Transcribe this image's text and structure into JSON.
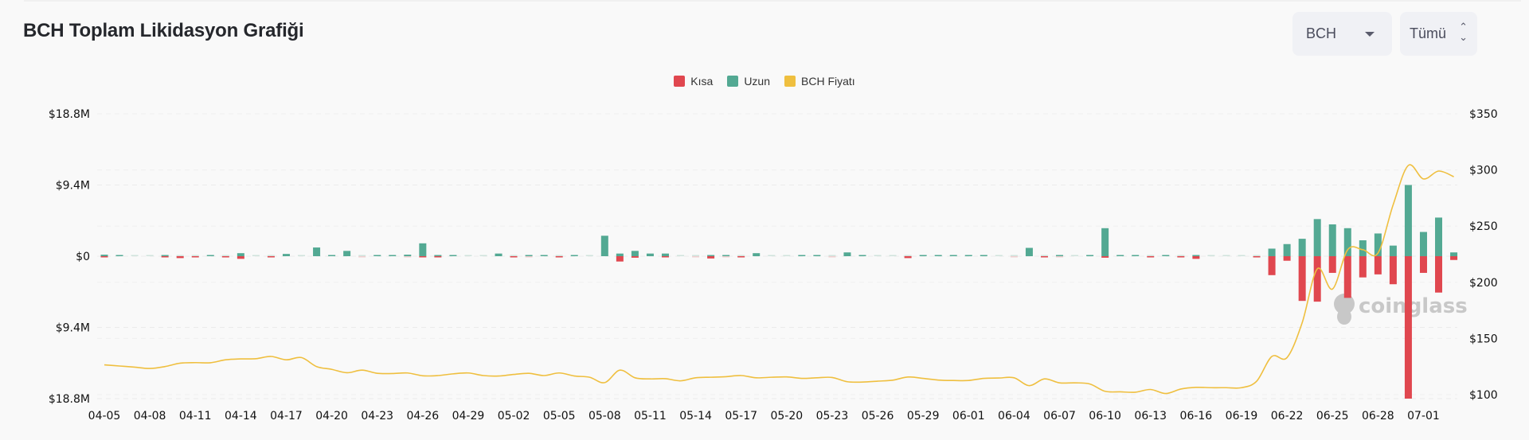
{
  "header": {
    "title": "BCH Toplam Likidasyon Grafiği",
    "coin_select": {
      "value": "BCH",
      "icon": "caret-down-icon"
    },
    "range_select": {
      "value": "Tümü",
      "icon": "up-down-chevron-icon"
    }
  },
  "watermark": "coinglass",
  "chart_data": {
    "type": "bar",
    "title": "",
    "legend_position": "top-center",
    "grid": true,
    "legend": [
      {
        "name": "Kısa",
        "color": "#e0474f"
      },
      {
        "name": "Uzun",
        "color": "#53a993"
      },
      {
        "name": "BCH Fiyatı",
        "color": "#efbf3f"
      }
    ],
    "left_axis": {
      "ticks": [
        "$18.8M",
        "$9.4M",
        "$0",
        "$9.4M",
        "$18.8M"
      ],
      "tick_values": [
        18.8,
        9.4,
        0,
        -9.4,
        -18.8
      ],
      "range": [
        -18.8,
        18.8
      ],
      "unit": "M USD"
    },
    "right_axis": {
      "ticks": [
        "$350",
        "$300",
        "$250",
        "$200",
        "$150",
        "$100"
      ],
      "tick_values": [
        350,
        300,
        250,
        200,
        150,
        100
      ],
      "range": [
        100,
        350
      ]
    },
    "x_tick_labels": [
      "04-05",
      "04-08",
      "04-11",
      "04-14",
      "04-17",
      "04-20",
      "04-23",
      "04-26",
      "04-29",
      "05-02",
      "05-05",
      "05-08",
      "05-11",
      "05-14",
      "05-17",
      "05-20",
      "05-23",
      "05-26",
      "05-29",
      "06-01",
      "06-04",
      "06-07",
      "06-10",
      "06-13",
      "06-16",
      "06-19",
      "06-22",
      "06-25",
      "06-28",
      "07-01"
    ],
    "x_start": "04-05",
    "x_end": "07-03",
    "series": [
      {
        "name": "Uzun",
        "color": "#53a993",
        "axis": "left",
        "kind": "bar-up",
        "values": [
          0.2,
          0.1,
          0.05,
          0.05,
          0.1,
          0,
          0.05,
          0.15,
          0,
          0.4,
          0.05,
          0,
          0.3,
          0.05,
          1.15,
          0.15,
          0.7,
          0,
          0.1,
          0.1,
          0.2,
          1.7,
          0.1,
          0.1,
          0.05,
          0.05,
          0.35,
          0,
          0.1,
          0.1,
          0,
          0.15,
          0.05,
          2.7,
          0.35,
          0.7,
          0.35,
          0.35,
          0.03,
          0,
          0.1,
          0.1,
          0,
          0.4,
          0.03,
          0.03,
          0.1,
          0.1,
          0,
          0.5,
          0.15,
          0.03,
          0.03,
          0,
          0.1,
          0.1,
          0.15,
          0.1,
          0.1,
          0.03,
          0,
          1.1,
          0,
          0.1,
          0.05,
          0.1,
          3.7,
          0.1,
          0.1,
          0,
          0.15,
          0,
          0.1,
          0.05,
          0.05,
          0.05,
          0,
          1.0,
          1.6,
          2.3,
          4.9,
          4.2,
          3.7,
          2.1,
          3.0,
          1.4,
          9.4,
          3.2,
          5.1,
          0.5
        ]
      },
      {
        "name": "Kısa",
        "color": "#e0474f",
        "axis": "left",
        "kind": "bar-down",
        "values": [
          0.1,
          0,
          0,
          0,
          0.1,
          0.25,
          0.1,
          0,
          0.15,
          0.35,
          0,
          0.1,
          0,
          0,
          0,
          0,
          0,
          0.05,
          0,
          0,
          0.05,
          0.1,
          0.1,
          0,
          0,
          0,
          0,
          0.1,
          0.05,
          0,
          0.15,
          0,
          0,
          0,
          0.7,
          0.2,
          0,
          0.1,
          0,
          0.05,
          0.3,
          0.05,
          0.1,
          0,
          0,
          0,
          0,
          0,
          0.05,
          0,
          0,
          0,
          0,
          0.25,
          0,
          0,
          0,
          0,
          0,
          0,
          0.05,
          0,
          0.1,
          0.05,
          0,
          0,
          0.2,
          0,
          0,
          0.1,
          0,
          0.1,
          0.35,
          0,
          0,
          0,
          0.1,
          2.5,
          0.6,
          5.9,
          6.0,
          2.2,
          5.5,
          2.8,
          2.4,
          3.7,
          18.8,
          2.2,
          4.8,
          0.5
        ]
      },
      {
        "name": "BCH Fiyatı",
        "color": "#efbf3f",
        "axis": "right",
        "kind": "line",
        "values": [
          126.5,
          125.5,
          124.5,
          123.3,
          125,
          128,
          128.5,
          128.4,
          131,
          131.8,
          132,
          134,
          131,
          133,
          125,
          122.5,
          119.5,
          121.8,
          119,
          118.8,
          119.3,
          116.8,
          117,
          118.5,
          119.3,
          117,
          116.6,
          118,
          119,
          117,
          119.3,
          116.6,
          115.5,
          110.7,
          121.8,
          115,
          114,
          114.2,
          112.3,
          115,
          115.5,
          116,
          117,
          115,
          115.5,
          115.8,
          114.5,
          115,
          115.3,
          111.5,
          111.2,
          112,
          112.9,
          115.7,
          114.5,
          113,
          112.6,
          112.6,
          114.5,
          114.8,
          115,
          108,
          114,
          110.5,
          110.5,
          109.5,
          103,
          102.5,
          102.2,
          104.6,
          101,
          105,
          106.5,
          106.2,
          106.2,
          106.2,
          112,
          134,
          133,
          164,
          212,
          194,
          229,
          229,
          226,
          269,
          304,
          292,
          299,
          294
        ]
      }
    ]
  }
}
